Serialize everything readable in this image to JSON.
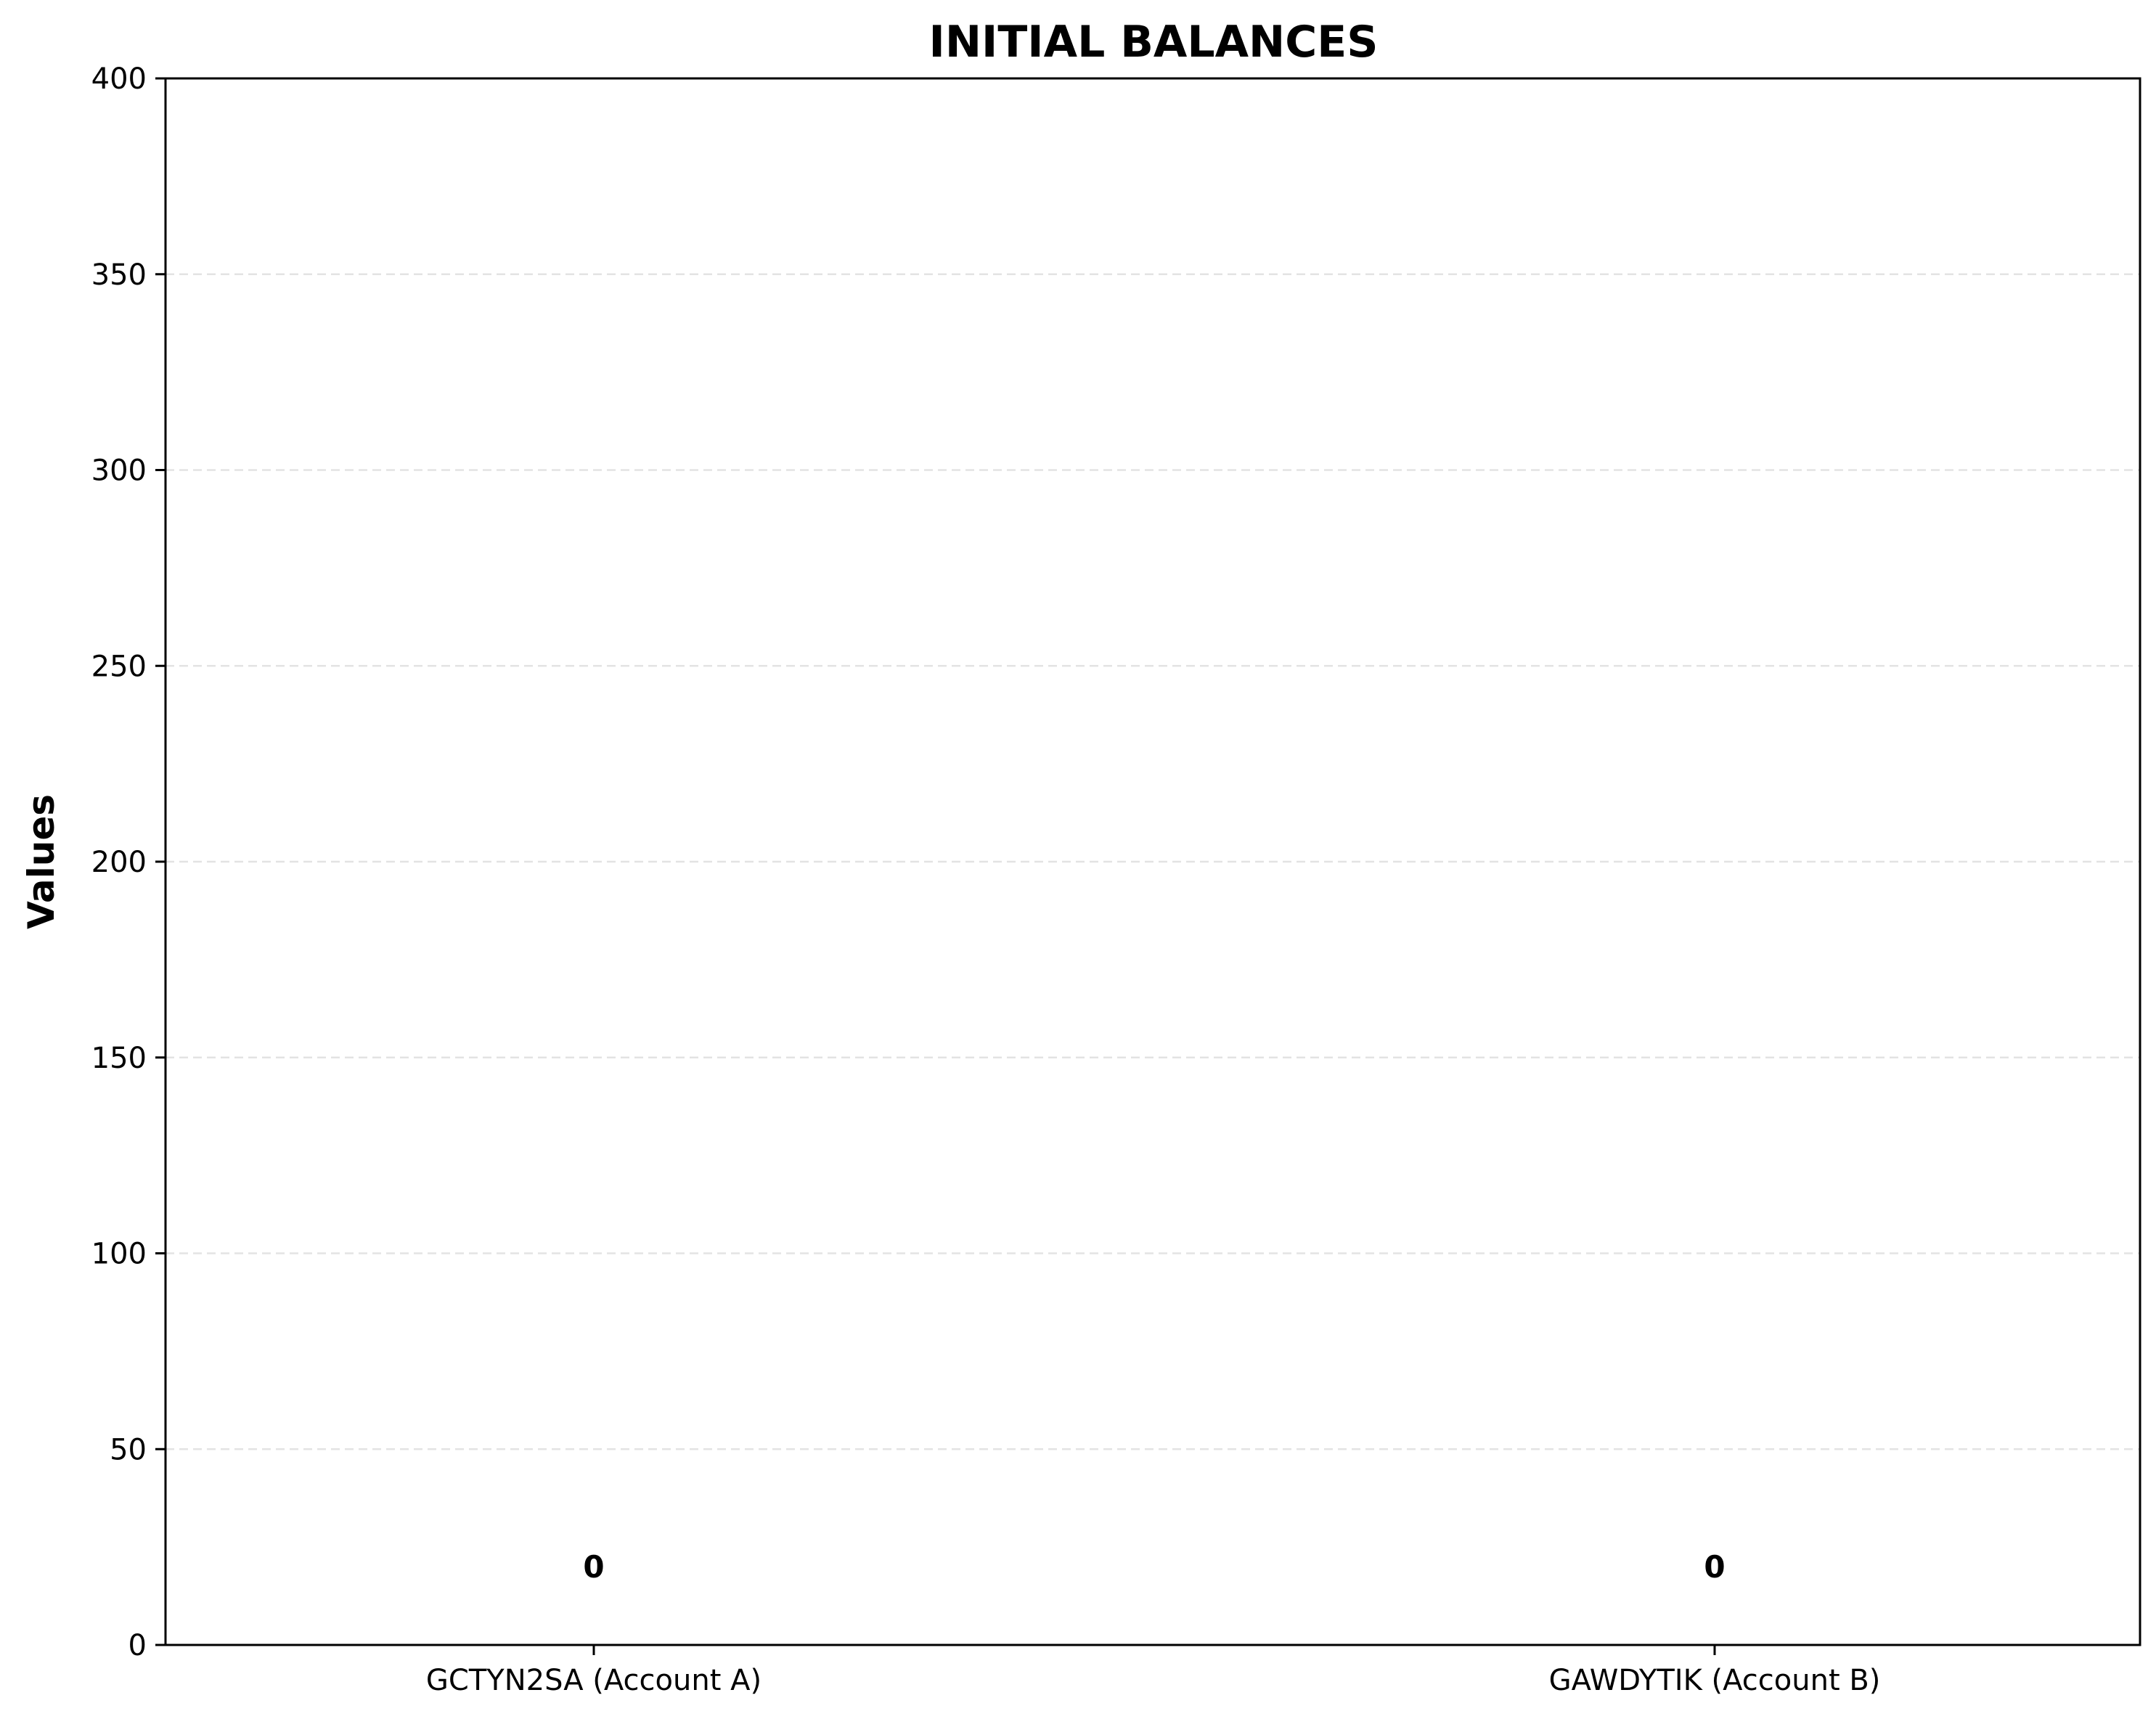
{
  "chart_data": {
    "type": "bar",
    "title": "INITIAL BALANCES",
    "xlabel": "",
    "ylabel": "Values",
    "categories": [
      "GCTYN2SA (Account A)",
      "GAWDYTIK (Account B)"
    ],
    "values": [
      0,
      0
    ],
    "data_labels": [
      "0",
      "0"
    ],
    "ylim": [
      0,
      400
    ],
    "yticks": [
      0,
      50,
      100,
      150,
      200,
      250,
      300,
      350,
      400
    ],
    "grid": "y, dashed",
    "legend": "none"
  }
}
